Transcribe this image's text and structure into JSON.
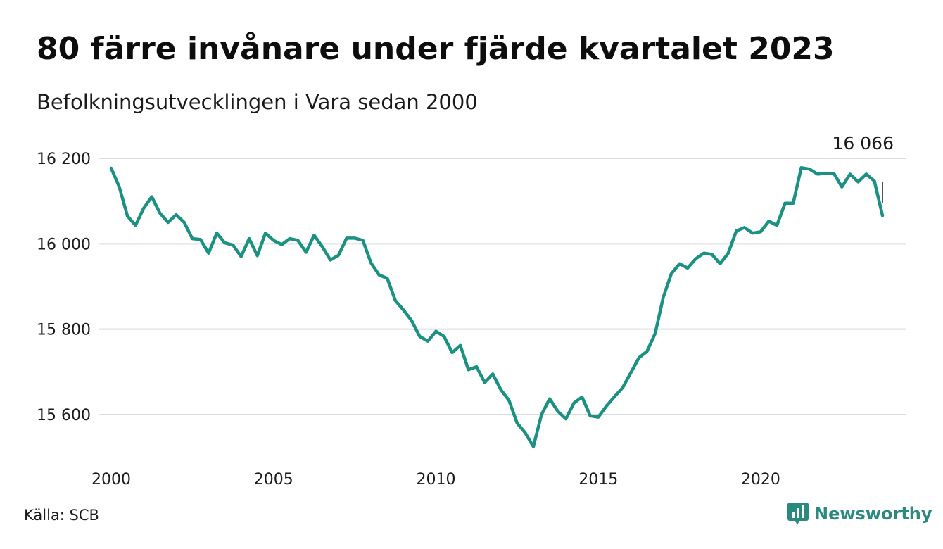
{
  "title": "80 färre invånare under fjärde kvartalet 2023",
  "subtitle": "Befolkningsutvecklingen i Vara sedan 2000",
  "source": "Källa: SCB",
  "brand": "Newsworthy",
  "colors": {
    "line": "#1a9183",
    "grid": "#dcdcdc",
    "brand": "#2a8a80"
  },
  "chart_data": {
    "type": "line",
    "title": "80 färre invånare under fjärde kvartalet 2023",
    "subtitle": "Befolkningsutvecklingen i Vara sedan 2000",
    "xlabel": "",
    "ylabel": "",
    "ylim": [
      15500,
      16230
    ],
    "xlim": [
      2000,
      2024.5
    ],
    "yticks": [
      15600,
      15800,
      16000,
      16200
    ],
    "ytick_labels": [
      "15 600",
      "15 800",
      "16 000",
      "16 200"
    ],
    "xticks": [
      2000,
      2005,
      2010,
      2015,
      2020
    ],
    "xtick_labels": [
      "2000",
      "2005",
      "2010",
      "2015",
      "2020"
    ],
    "grid": true,
    "last_value_label": "16 066",
    "series": [
      {
        "x": [
          2000.0,
          2000.25,
          2000.5,
          2000.75,
          2001.0,
          2001.25,
          2001.5,
          2001.75,
          2002.0,
          2002.25,
          2002.5,
          2002.75,
          2003.0,
          2003.25,
          2003.5,
          2003.75,
          2004.0,
          2004.25,
          2004.5,
          2004.75,
          2005.0,
          2005.25,
          2005.5,
          2005.75,
          2006.0,
          2006.25,
          2006.5,
          2006.75,
          2007.0,
          2007.25,
          2007.5,
          2007.75,
          2008.0,
          2008.25,
          2008.5,
          2008.75,
          2009.0,
          2009.25,
          2009.5,
          2009.75,
          2010.0,
          2010.25,
          2010.5,
          2010.75,
          2011.0,
          2011.25,
          2011.5,
          2011.75,
          2012.0,
          2012.25,
          2012.5,
          2012.75,
          2013.0,
          2013.25,
          2013.5,
          2013.75,
          2014.0,
          2014.25,
          2014.5,
          2014.75,
          2015.0,
          2015.25,
          2015.5,
          2015.75,
          2016.0,
          2016.25,
          2016.5,
          2016.75,
          2017.0,
          2017.25,
          2017.5,
          2017.75,
          2018.0,
          2018.25,
          2018.5,
          2018.75,
          2019.0,
          2019.25,
          2019.5,
          2019.75,
          2020.0,
          2020.25,
          2020.5,
          2020.75,
          2021.0,
          2021.25,
          2021.5,
          2021.75,
          2022.0,
          2022.25,
          2022.5,
          2022.75,
          2023.0,
          2023.25,
          2023.5,
          2023.75
        ],
        "values": [
          16177,
          16133,
          16065,
          16043,
          16083,
          16110,
          16072,
          16050,
          16068,
          16050,
          16012,
          16010,
          15978,
          16025,
          16002,
          15997,
          15970,
          16012,
          15972,
          16025,
          16008,
          15998,
          16012,
          16008,
          15980,
          16020,
          15993,
          15962,
          15973,
          16013,
          16013,
          16008,
          15955,
          15927,
          15919,
          15867,
          15845,
          15820,
          15783,
          15772,
          15795,
          15783,
          15745,
          15762,
          15705,
          15712,
          15675,
          15695,
          15658,
          15633,
          15580,
          15557,
          15525,
          15600,
          15637,
          15608,
          15590,
          15627,
          15641,
          15597,
          15594,
          15620,
          15642,
          15663,
          15698,
          15733,
          15748,
          15790,
          15875,
          15930,
          15953,
          15943,
          15965,
          15978,
          15975,
          15953,
          15978,
          16030,
          16038,
          16025,
          16028,
          16053,
          16043,
          16095,
          16095,
          16178,
          16175,
          16163,
          16165,
          16165,
          16133,
          16163,
          16145,
          16163,
          16147,
          16066
        ]
      }
    ]
  }
}
